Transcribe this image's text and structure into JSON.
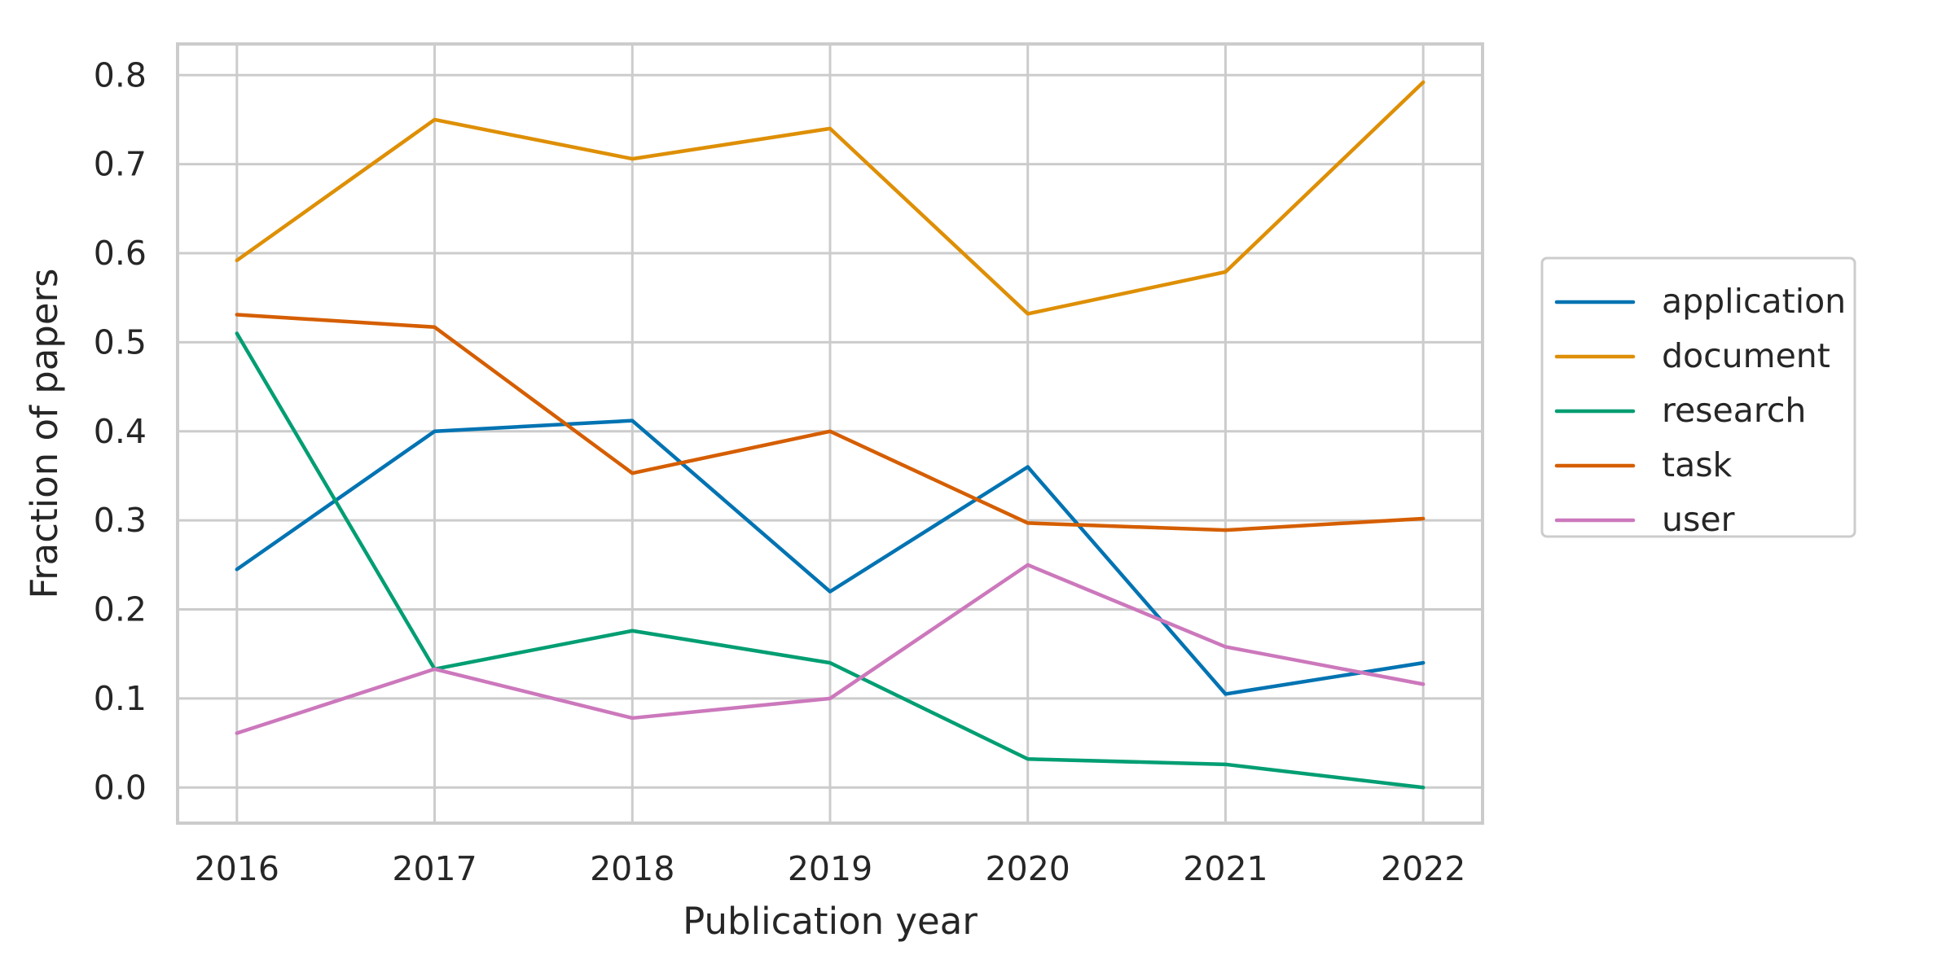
{
  "chart_data": {
    "type": "line",
    "title": "",
    "xlabel": "Publication year",
    "ylabel": "Fraction of papers",
    "x": [
      2016,
      2017,
      2018,
      2019,
      2020,
      2021,
      2022
    ],
    "x_tick_labels": [
      "2016",
      "2017",
      "2018",
      "2019",
      "2020",
      "2021",
      "2022"
    ],
    "y_ticks": [
      0.0,
      0.1,
      0.2,
      0.3,
      0.4,
      0.5,
      0.6,
      0.7,
      0.8
    ],
    "y_tick_labels": [
      "0.0",
      "0.1",
      "0.2",
      "0.3",
      "0.4",
      "0.5",
      "0.6",
      "0.7",
      "0.8"
    ],
    "xlim": [
      2015.7,
      2022.3
    ],
    "ylim": [
      -0.04,
      0.835
    ],
    "grid": true,
    "legend_position": "right-outside",
    "series": [
      {
        "name": "application",
        "color": "#0173b2",
        "values": [
          0.245,
          0.4,
          0.412,
          0.22,
          0.36,
          0.105,
          0.14
        ]
      },
      {
        "name": "document",
        "color": "#de8f05",
        "values": [
          0.592,
          0.75,
          0.706,
          0.74,
          0.532,
          0.579,
          0.792
        ]
      },
      {
        "name": "research",
        "color": "#029e73",
        "values": [
          0.51,
          0.133,
          0.176,
          0.14,
          0.032,
          0.026,
          0.0
        ]
      },
      {
        "name": "task",
        "color": "#d55e00",
        "values": [
          0.531,
          0.517,
          0.353,
          0.4,
          0.297,
          0.289,
          0.302
        ]
      },
      {
        "name": "user",
        "color": "#cc78bc",
        "values": [
          0.061,
          0.133,
          0.078,
          0.1,
          0.25,
          0.158,
          0.116
        ]
      }
    ]
  }
}
